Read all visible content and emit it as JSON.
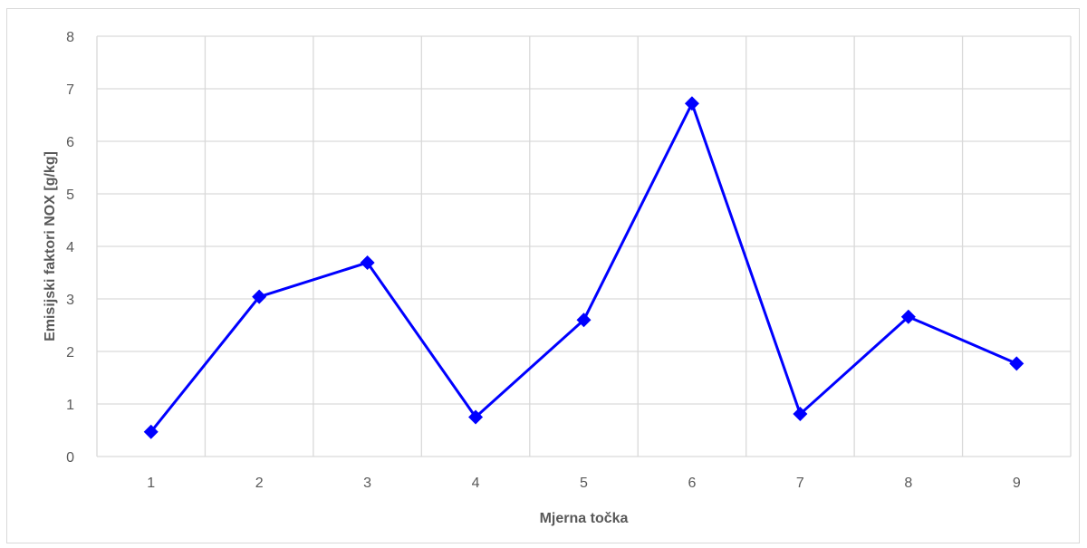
{
  "chart_data": {
    "type": "line",
    "title": "",
    "xlabel": "Mjerna točka",
    "ylabel": "Emisijski faktori NOX [g/kg]",
    "categories": [
      "1",
      "2",
      "3",
      "4",
      "5",
      "6",
      "7",
      "8",
      "9"
    ],
    "series": [
      {
        "values": [
          0.47,
          3.04,
          3.69,
          0.75,
          2.6,
          6.72,
          0.81,
          2.66,
          1.77
        ],
        "color": "#0000ff",
        "marker": "diamond"
      }
    ],
    "ylim": [
      0,
      8
    ],
    "yticks": [
      "0",
      "1",
      "2",
      "3",
      "4",
      "5",
      "6",
      "7",
      "8"
    ],
    "grid": true,
    "legend": "none",
    "colors": {
      "gridline": "#d9d9d9",
      "text": "#595959",
      "series": "#0000ff"
    }
  }
}
